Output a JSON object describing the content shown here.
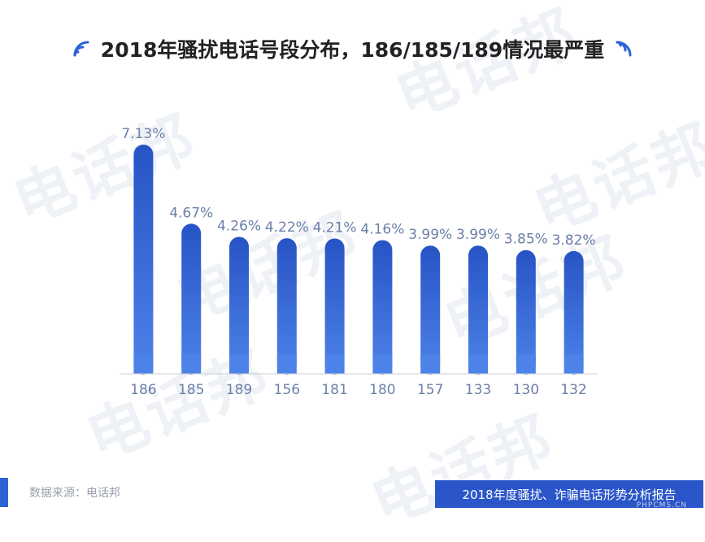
{
  "title": "2018年骚扰电话号段分布，186/185/189情况最严重",
  "watermark_text": "电话邦",
  "colors": {
    "bar_top": "#2754c5",
    "bar_bottom": "#4d82e8",
    "label": "#6b7fa8",
    "accent": "#2c63d3",
    "banner": "#2a56c9"
  },
  "icons": {
    "left": "signal-waves-icon",
    "right": "signal-waves-icon"
  },
  "chart_data": {
    "type": "bar",
    "title": "2018年骚扰电话号段分布，186/185/189情况最严重",
    "categories": [
      "186",
      "185",
      "189",
      "156",
      "181",
      "180",
      "157",
      "133",
      "130",
      "132"
    ],
    "values": [
      7.13,
      4.67,
      4.26,
      4.22,
      4.21,
      4.16,
      3.99,
      3.99,
      3.85,
      3.82
    ],
    "value_labels": [
      "7.13%",
      "4.67%",
      "4.26%",
      "4.22%",
      "4.21%",
      "4.16%",
      "3.99%",
      "3.99%",
      "3.85%",
      "3.82%"
    ],
    "unit": "%",
    "ylim": [
      0,
      7.13
    ],
    "grid": false,
    "legend": "none"
  },
  "footer": {
    "source": "数据来源：电话邦",
    "report_title": "2018年度骚扰、诈骗电话形势分析报告",
    "corner_mark": "PHPCMS.CN"
  }
}
